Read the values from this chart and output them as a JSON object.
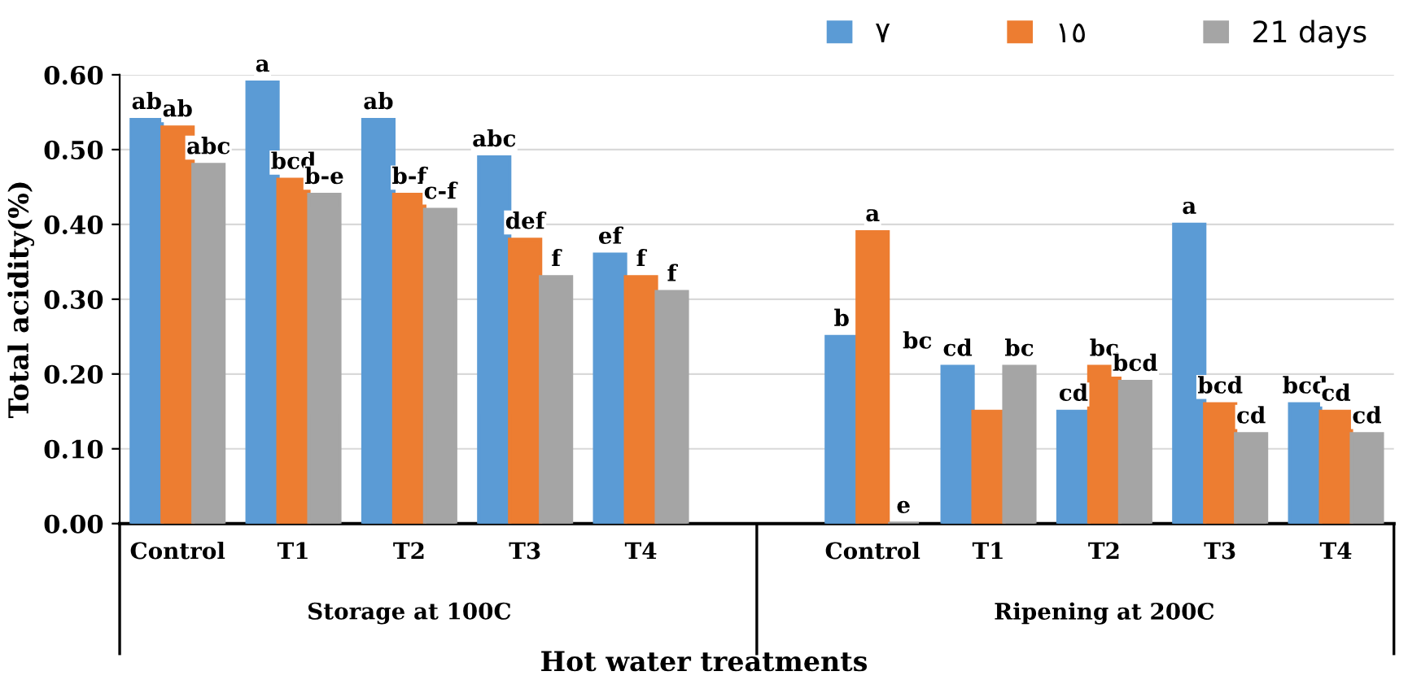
{
  "chart_data": {
    "type": "bar",
    "xlabel": "Hot water treatments",
    "ylabel": "Total acidity(%)",
    "categories": [
      "Control",
      "T1",
      "T2",
      "T3",
      "T4",
      null,
      "Control",
      "T1",
      "T2",
      "T3",
      "T4"
    ],
    "series": [
      {
        "name": "٧",
        "color": "#5b9bd5",
        "values": [
          0.54,
          0.59,
          0.54,
          0.49,
          0.36,
          null,
          0.25,
          0.21,
          0.15,
          0.4,
          0.16
        ],
        "value_labels": [
          "ab",
          "a",
          "ab",
          "abc",
          "ef",
          null,
          "b",
          "cd",
          "cd",
          "a",
          "bcd"
        ]
      },
      {
        "name": "١٥",
        "color": "#ed7d31",
        "values": [
          0.53,
          0.46,
          0.44,
          0.38,
          0.33,
          null,
          0.39,
          0.15,
          0.21,
          0.16,
          0.15
        ],
        "value_labels": [
          "ab",
          "bcd",
          "b-f",
          "def",
          "f",
          null,
          "a",
          null,
          "bc",
          "bcd",
          "cd"
        ]
      },
      {
        "name": "21 days",
        "color": "#a5a5a5",
        "values": [
          0.48,
          0.44,
          0.42,
          0.33,
          0.31,
          null,
          0.0,
          0.21,
          0.19,
          0.12,
          0.12
        ],
        "value_labels": [
          "abc",
          "b-e",
          "c-f",
          "f",
          "f",
          null,
          "e",
          "bc",
          "bcd",
          "cd",
          "cd"
        ]
      }
    ],
    "annotations": [
      "Storage at 100C",
      "Ripening at 200C",
      "bc"
    ],
    "ylim": [
      0,
      0.6
    ],
    "yticks": [
      {
        "value": 0,
        "label": "0.00"
      },
      {
        "value": 0.1,
        "label": "0.10"
      },
      {
        "value": 0.2,
        "label": "0.20"
      },
      {
        "value": 0.3,
        "label": "0.30"
      },
      {
        "value": 0.4,
        "label": "0.40"
      },
      {
        "value": 0.5,
        "label": "0.50"
      },
      {
        "value": 0.6,
        "label": "0.60"
      }
    ],
    "grid": "y",
    "legend": "top right"
  }
}
